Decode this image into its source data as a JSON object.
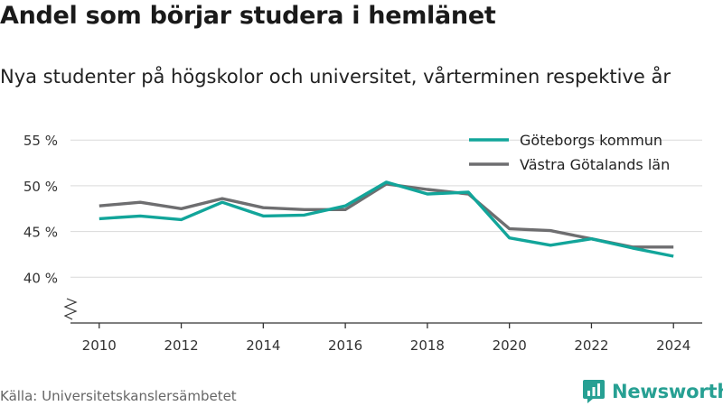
{
  "title": "Andel som börjar studera i hemlänet",
  "subtitle": "Nya studenter på högskolor och universitet, vårterminen respektive år",
  "source": "Källa: Universitetskanslersämbetet",
  "brand": {
    "name": "Newsworthy",
    "icon": "newsworthy-logo-icon",
    "color": "#27a093"
  },
  "chart_data": {
    "type": "line",
    "x": [
      2010,
      2011,
      2012,
      2013,
      2014,
      2015,
      2016,
      2017,
      2018,
      2019,
      2020,
      2021,
      2022,
      2023,
      2024
    ],
    "xticks": [
      2010,
      2012,
      2014,
      2016,
      2018,
      2020,
      2022,
      2024
    ],
    "yticks": [
      40,
      45,
      50,
      55
    ],
    "ytick_labels": [
      "40 %",
      "45 %",
      "50 %",
      "55 %"
    ],
    "ylim": [
      35,
      56.5
    ],
    "xlim": [
      2009.3,
      2024.7
    ],
    "axis_break": true,
    "grid": true,
    "legend_position": "top-right",
    "series": [
      {
        "name": "Göteborgs kommun",
        "color": "#12a59a",
        "values": [
          46.4,
          46.7,
          46.3,
          48.2,
          46.7,
          46.8,
          47.8,
          50.4,
          49.1,
          49.3,
          44.3,
          43.5,
          44.2,
          43.2,
          42.3
        ]
      },
      {
        "name": "Västra Götalands län",
        "color": "#6e6e70",
        "values": [
          47.8,
          48.2,
          47.5,
          48.6,
          47.6,
          47.4,
          47.4,
          50.2,
          49.6,
          49.1,
          45.3,
          45.1,
          44.2,
          43.3,
          43.3
        ]
      }
    ]
  }
}
